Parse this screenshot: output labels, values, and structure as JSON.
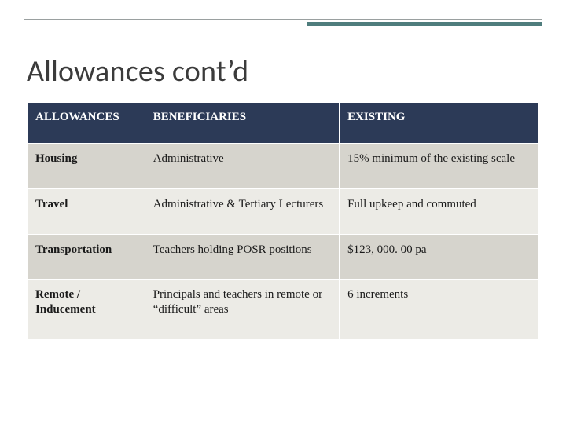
{
  "title": "Allowances cont’d",
  "table": {
    "type": "table",
    "columns": [
      "ALLOWANCES",
      "BENEFICIARIES",
      "EXISTING"
    ],
    "rows": [
      [
        "Housing",
        "Administrative",
        "15%  minimum of the existing scale"
      ],
      [
        "Travel",
        "Administrative & Tertiary Lecturers",
        "Full upkeep and commuted"
      ],
      [
        "Transportation",
        "Teachers holding POSR positions",
        "$123, 000. 00 pa"
      ],
      [
        "Remote / Inducement",
        "Principals and teachers in remote or “difficult” areas",
        "6 increments"
      ]
    ],
    "header_bg": "#2c3a57",
    "header_text_color": "#ffffff",
    "row_band_colors": [
      "#d6d4cd",
      "#ecebe6"
    ],
    "border_color": "#ffffff",
    "font_family": "Georgia",
    "header_fontsize_pt": 11,
    "cell_fontsize_pt": 11,
    "col_widths_pct": [
      23,
      38,
      39
    ]
  },
  "accent_rule_color": "#4f7d7d",
  "background_color": "#ffffff",
  "title_font_family": "Calibri",
  "title_fontsize_pt": 28,
  "title_color": "#3b3b3b"
}
